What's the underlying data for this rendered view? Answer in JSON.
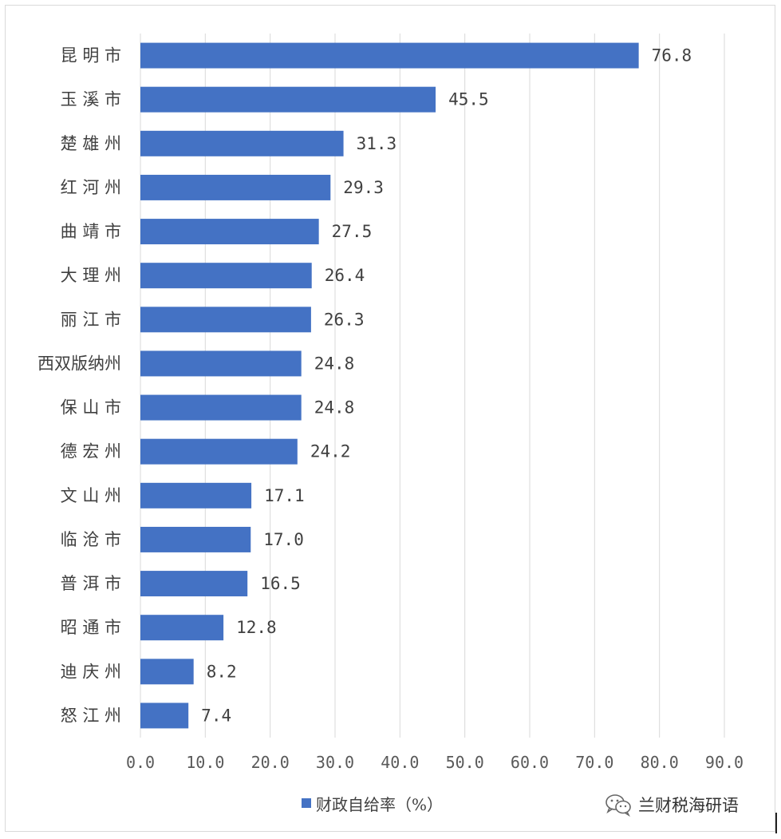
{
  "chart_data": {
    "type": "bar",
    "orientation": "horizontal",
    "categories": [
      "昆 明 市",
      "玉 溪 市",
      "楚 雄 州",
      "红 河 州",
      "曲 靖 市",
      "大 理 州",
      "丽 江 市",
      "西双版纳州",
      "保 山 市",
      "德 宏 州",
      "文 山 州",
      "临 沧 市",
      "普 洱 市",
      "昭 通 市",
      "迪 庆 州",
      "怒 江 州"
    ],
    "series": [
      {
        "name": "财政自给率（%）",
        "values": [
          76.8,
          45.5,
          31.3,
          29.3,
          27.5,
          26.4,
          26.3,
          24.8,
          24.8,
          24.2,
          17.1,
          17.0,
          16.5,
          12.8,
          8.2,
          7.4
        ],
        "color": "#4472c4"
      }
    ],
    "value_labels": [
      "76.8",
      "45.5",
      "31.3",
      "29.3",
      "27.5",
      "26.4",
      "26.3",
      "24.8",
      "24.8",
      "24.2",
      "17.1",
      "17.0",
      "16.5",
      "12.8",
      "8.2",
      "7.4"
    ],
    "x_ticks": [
      "0.0",
      "10.0",
      "20.0",
      "30.0",
      "40.0",
      "50.0",
      "60.0",
      "70.0",
      "80.0",
      "90.0"
    ],
    "xlim": [
      0,
      90
    ],
    "grid": true,
    "legend_position": "bottom",
    "title": "",
    "xlabel": "",
    "ylabel": ""
  },
  "legend": {
    "label": "财政自给率（%）"
  },
  "watermark": {
    "text": "兰财税海研语",
    "icon": "wechat-icon"
  },
  "colors": {
    "bar": "#4472c4",
    "grid": "#d9d9d9",
    "text": "#404040"
  }
}
